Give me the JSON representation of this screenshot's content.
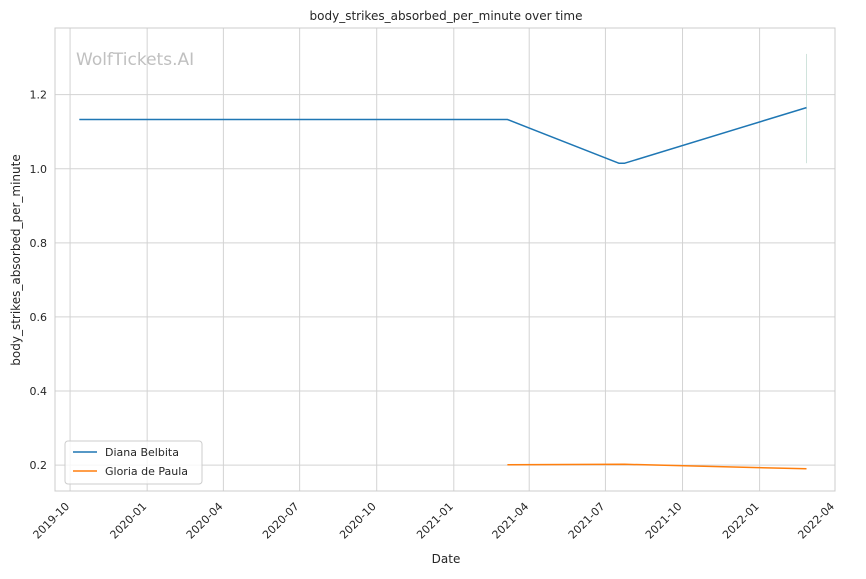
{
  "watermark": "WolfTickets.AI",
  "colors": {
    "series_0": "#1f77b4",
    "series_1": "#ff7f0e",
    "grid": "#d3d3d3",
    "frame": "#cccccc",
    "text": "#262626",
    "watermark": "#c0c0c0",
    "marker": "#cfe3dc"
  },
  "chart_data": {
    "type": "line",
    "title": "body_strikes_absorbed_per_minute over time",
    "xlabel": "Date",
    "ylabel": "body_strikes_absorbed_per_minute",
    "x_type": "date",
    "xlim": [
      "2019-09-13",
      "2022-04-01"
    ],
    "ylim": [
      0.13,
      1.38
    ],
    "grid": true,
    "legend_position": "lower-left",
    "x_ticks": [
      "2019-10",
      "2020-01",
      "2020-04",
      "2020-07",
      "2020-10",
      "2021-01",
      "2021-04",
      "2021-07",
      "2021-10",
      "2022-01",
      "2022-04"
    ],
    "y_ticks": [
      "0.2",
      "0.4",
      "0.6",
      "0.8",
      "1.0",
      "1.2"
    ],
    "series": [
      {
        "name": "Diana Belbita",
        "color": "#1f77b4",
        "points": [
          {
            "x": "2019-10-12",
            "y": 1.133
          },
          {
            "x": "2021-03-06",
            "y": 1.133
          },
          {
            "x": "2021-07-17",
            "y": 1.015
          },
          {
            "x": "2021-07-24",
            "y": 1.015
          },
          {
            "x": "2022-02-26",
            "y": 1.165
          }
        ]
      },
      {
        "name": "Gloria de Paula",
        "color": "#ff7f0e",
        "points": [
          {
            "x": "2021-03-06",
            "y": 0.201
          },
          {
            "x": "2021-07-24",
            "y": 0.202
          },
          {
            "x": "2022-02-26",
            "y": 0.19
          }
        ]
      }
    ],
    "annotations": [
      {
        "type": "vertical-segment",
        "x": "2022-02-26",
        "y_range": [
          1.015,
          1.31
        ]
      }
    ]
  }
}
